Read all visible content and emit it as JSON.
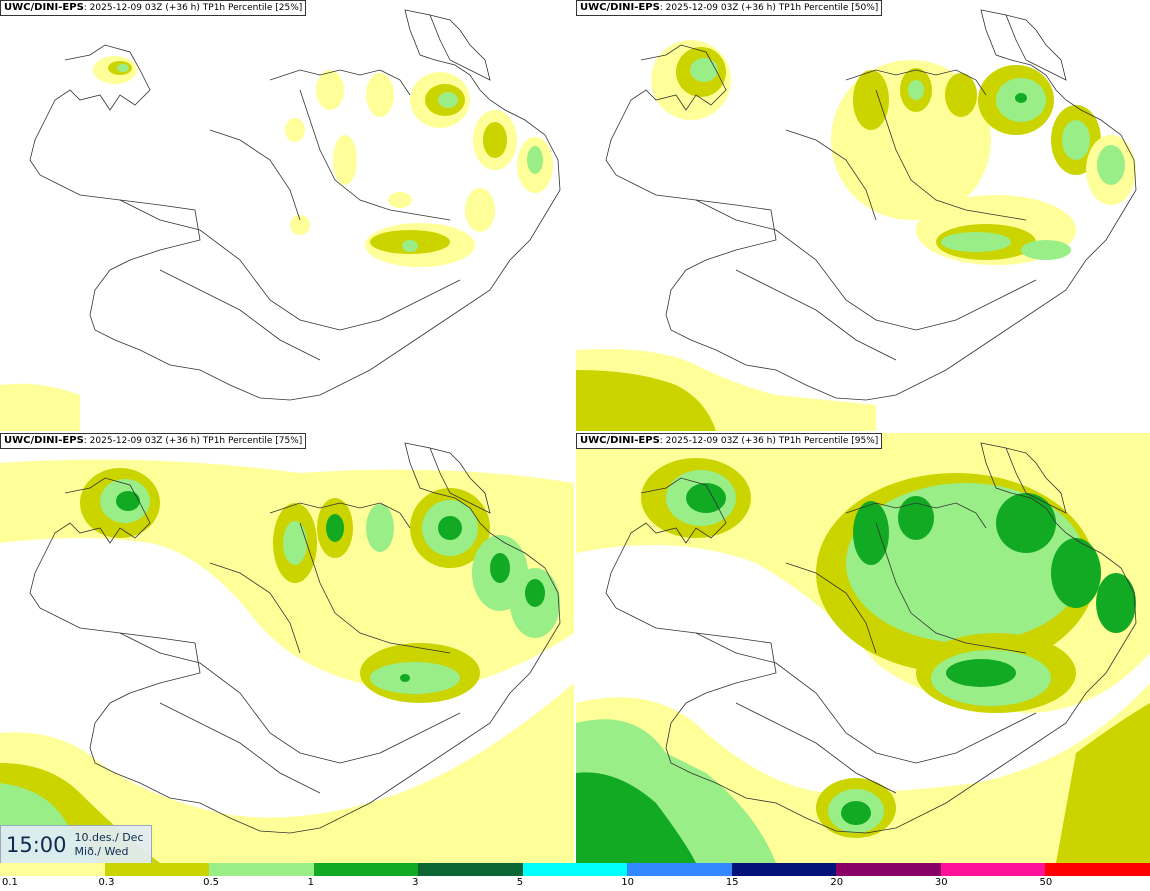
{
  "panels": [
    {
      "label": "UWC/DINI-EPS",
      "run": "2025-12-09 03Z (+36 h)",
      "field": "TP1h Percentile [25%]"
    },
    {
      "label": "UWC/DINI-EPS",
      "run": "2025-12-09 03Z (+36 h)",
      "field": "TP1h Percentile [50%]"
    },
    {
      "label": "UWC/DINI-EPS",
      "run": "2025-12-09 03Z (+36 h)",
      "field": "TP1h Percentile [75%]"
    },
    {
      "label": "UWC/DINI-EPS",
      "run": "2025-12-09 03Z (+36 h)",
      "field": "TP1h Percentile [95%]"
    }
  ],
  "valid_time": {
    "time": "15:00",
    "date_line1": "10.des./ Dec",
    "date_line2": "Mið./ Wed"
  },
  "colorbar": {
    "colors": [
      "#ffff99",
      "#ccd400",
      "#99ee88",
      "#11aa22",
      "#0b6633",
      "#00ffff",
      "#3388ff",
      "#001177",
      "#880066",
      "#ff1199",
      "#ff0000"
    ],
    "ticks": [
      "0.1",
      "0.3",
      "0.5",
      "1",
      "3",
      "5",
      "10",
      "15",
      "20",
      "30",
      "50"
    ]
  }
}
